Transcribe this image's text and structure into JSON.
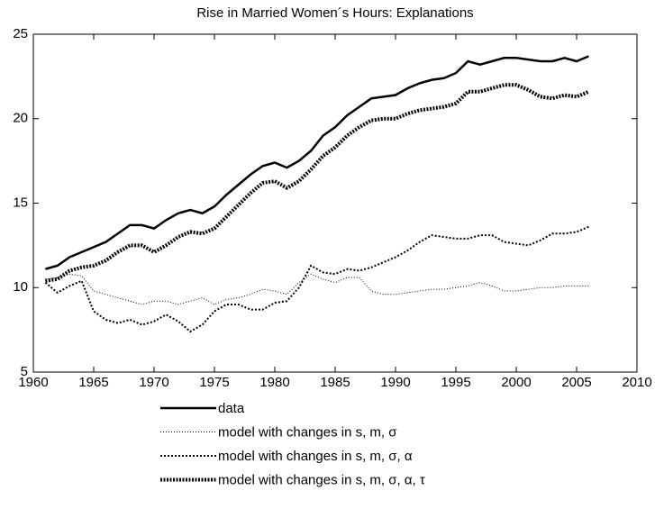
{
  "chart_data": {
    "type": "line",
    "title": "Rise in Married Women´s Hours: Explanations",
    "x": [
      1961,
      1962,
      1963,
      1964,
      1965,
      1966,
      1967,
      1968,
      1969,
      1970,
      1971,
      1972,
      1973,
      1974,
      1975,
      1976,
      1977,
      1978,
      1979,
      1980,
      1981,
      1982,
      1983,
      1984,
      1985,
      1986,
      1987,
      1988,
      1989,
      1990,
      1991,
      1992,
      1993,
      1994,
      1995,
      1996,
      1997,
      1998,
      1999,
      2000,
      2001,
      2002,
      2003,
      2004,
      2005,
      2006
    ],
    "series": [
      {
        "name": "data",
        "color": "#000000",
        "values": [
          11.1,
          11.3,
          11.8,
          12.1,
          12.4,
          12.7,
          13.2,
          13.7,
          13.7,
          13.5,
          14.0,
          14.4,
          14.6,
          14.4,
          14.8,
          15.5,
          16.1,
          16.7,
          17.2,
          17.4,
          17.1,
          17.5,
          18.1,
          19.0,
          19.5,
          20.2,
          20.7,
          21.2,
          21.3,
          21.4,
          21.8,
          22.1,
          22.3,
          22.4,
          22.7,
          23.4,
          23.2,
          23.4,
          23.6,
          23.6,
          23.5,
          23.4,
          23.4,
          23.6,
          23.4,
          23.7
        ]
      },
      {
        "name": "model with changes in s, m, σ",
        "color": "#000000",
        "values": [
          10.5,
          10.6,
          10.8,
          10.7,
          9.8,
          9.6,
          9.4,
          9.2,
          9.0,
          9.2,
          9.2,
          9.0,
          9.2,
          9.4,
          9.0,
          9.3,
          9.4,
          9.6,
          9.9,
          9.8,
          9.6,
          10.3,
          10.8,
          10.5,
          10.3,
          10.6,
          10.6,
          9.8,
          9.6,
          9.6,
          9.7,
          9.8,
          9.9,
          9.9,
          10.0,
          10.1,
          10.3,
          10.1,
          9.8,
          9.8,
          9.9,
          10.0,
          10.0,
          10.1,
          10.1,
          10.1
        ]
      },
      {
        "name": "model with changes in s, m, σ, α",
        "color": "#000000",
        "values": [
          10.3,
          9.7,
          10.1,
          10.4,
          8.6,
          8.1,
          7.9,
          8.1,
          7.8,
          8.0,
          8.4,
          8.0,
          7.4,
          7.8,
          8.6,
          9.0,
          9.0,
          8.7,
          8.7,
          9.1,
          9.2,
          10.0,
          11.3,
          10.9,
          10.8,
          11.1,
          11.0,
          11.2,
          11.5,
          11.8,
          12.2,
          12.7,
          13.1,
          13.0,
          12.9,
          12.9,
          13.1,
          13.1,
          12.7,
          12.6,
          12.5,
          12.8,
          13.2,
          13.2,
          13.3,
          13.6
        ]
      },
      {
        "name": "model with changes in s, m, σ, α, τ",
        "color": "#000000",
        "values": [
          10.4,
          10.5,
          11.0,
          11.2,
          11.3,
          11.6,
          12.1,
          12.5,
          12.5,
          12.1,
          12.5,
          13.0,
          13.3,
          13.2,
          13.5,
          14.2,
          14.9,
          15.6,
          16.2,
          16.3,
          15.9,
          16.3,
          17.0,
          17.8,
          18.3,
          19.0,
          19.5,
          19.9,
          20.0,
          20.0,
          20.3,
          20.5,
          20.6,
          20.7,
          20.9,
          21.6,
          21.6,
          21.8,
          22.0,
          22.0,
          21.7,
          21.3,
          21.2,
          21.4,
          21.3,
          21.6
        ]
      }
    ],
    "xlim": [
      1960,
      2010
    ],
    "xticks": [
      1960,
      1965,
      1970,
      1975,
      1980,
      1985,
      1990,
      1995,
      2000,
      2005,
      2010
    ],
    "ylim": [
      5,
      25
    ],
    "yticks": [
      5,
      10,
      15,
      20,
      25
    ]
  }
}
